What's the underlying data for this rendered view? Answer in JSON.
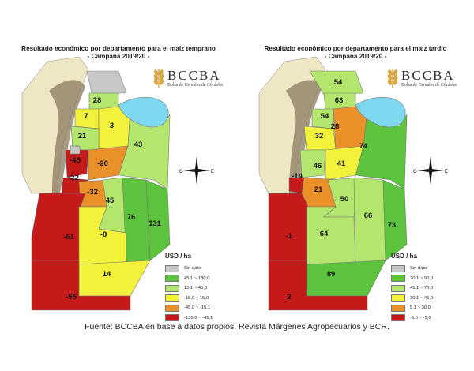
{
  "panels": [
    {
      "title": "Resultado económico por departamento para el maíz temprano",
      "subtitle": "- Campaña 2019/20 -",
      "labels": [
        "28",
        "7",
        "-3",
        "21",
        "43",
        "-45",
        "-20",
        "-22",
        "-32",
        "45",
        "76",
        "131",
        "-61",
        "-8",
        "14",
        "-55"
      ]
    },
    {
      "title": "Resultado económico por departamento para el maíz tardío",
      "subtitle": "- Campaña 2019/20 -",
      "labels": [
        "54",
        "63",
        "54",
        "28",
        "32",
        "74",
        "46",
        "41",
        "-14",
        "21",
        "50",
        "66",
        "73",
        "-1",
        "64",
        "89",
        "2"
      ]
    }
  ],
  "legends": [
    {
      "title": "USD / ha",
      "entries": [
        {
          "label": "Sin dato",
          "color": "#c8c8c8"
        },
        {
          "label": "45,1 ~ 130,0",
          "color": "#5cc43c"
        },
        {
          "label": "15,1 ~ 45,0",
          "color": "#b4e66e"
        },
        {
          "label": "-15,0 ~ 15,0",
          "color": "#f2f23a"
        },
        {
          "label": "-45,0 ~ -15,1",
          "color": "#ea9028"
        },
        {
          "label": "-130,0 ~ -45,1",
          "color": "#c41a1a"
        }
      ]
    },
    {
      "title": "USD / ha",
      "entries": [
        {
          "label": "Sin dato",
          "color": "#c8c8c8"
        },
        {
          "label": "70,1 ~ 90,0",
          "color": "#5cc43c"
        },
        {
          "label": "45,1 ~ 70,0",
          "color": "#b4e66e"
        },
        {
          "label": "30,1 ~ 45,0",
          "color": "#f2f23a"
        },
        {
          "label": "5,1 ~ 30,0",
          "color": "#ea9028"
        },
        {
          "label": "-5,0 ~ -5,0",
          "color": "#c41a1a"
        }
      ]
    }
  ],
  "logo": {
    "brand": "BCCBA",
    "tagline": "Bolsa de Cereales de Córdoba"
  },
  "compass": {
    "n": "N",
    "s": "S",
    "e": "E",
    "o": "O"
  },
  "source_text": "Fuente: BCCBA en base a datos propios, Revista Márgenes Agropecuarios y BCR.",
  "colors": {
    "neighbors": "#efe7c4",
    "mountains": "#8a7a5e",
    "lagoon": "#7ed8f0",
    "no_data": "#c8c8c8"
  }
}
